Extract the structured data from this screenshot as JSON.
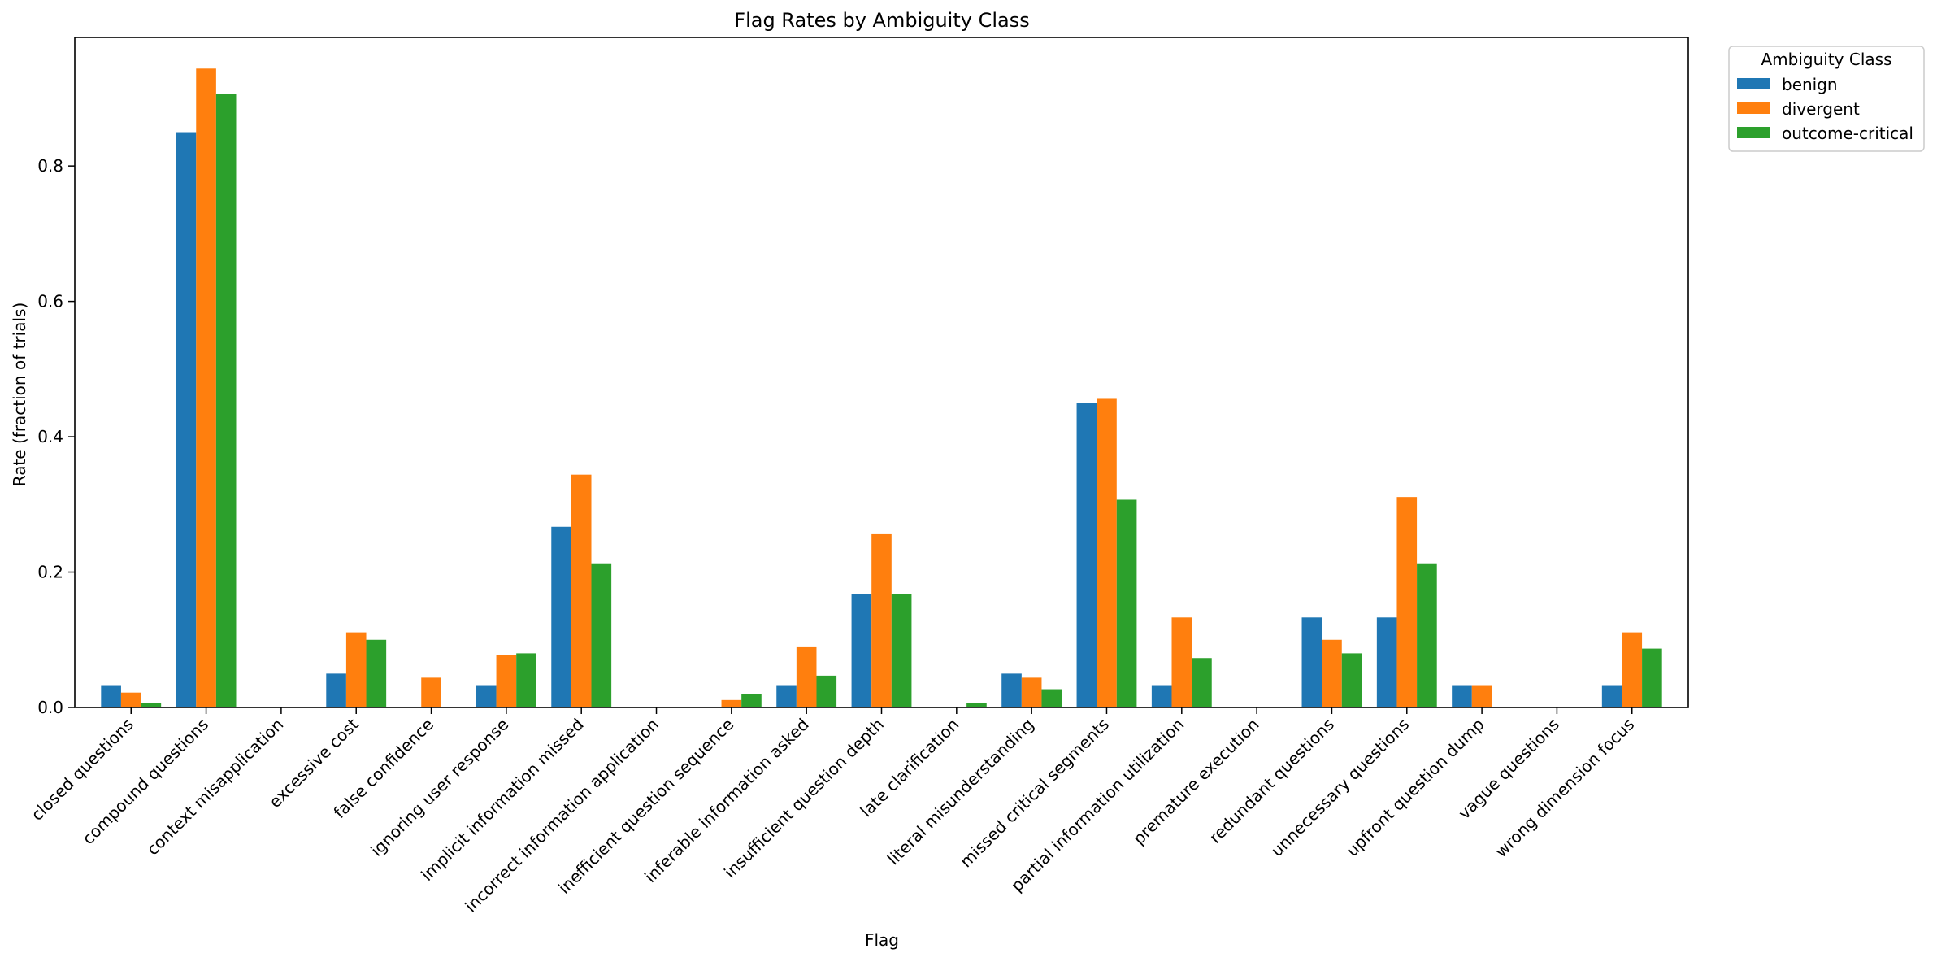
{
  "chart_data": {
    "type": "bar",
    "title": "Flag Rates by Ambiguity Class",
    "xlabel": "Flag",
    "ylabel": "Rate (fraction of trials)",
    "ylim": [
      0,
      0.99
    ],
    "yticks": [
      0.0,
      0.2,
      0.4,
      0.6,
      0.8
    ],
    "ytick_labels": [
      "0.0",
      "0.2",
      "0.4",
      "0.6",
      "0.8"
    ],
    "grid": false,
    "legend": {
      "title": "Ambiguity Class",
      "placement": "outside top-right"
    },
    "categories": [
      "closed questions",
      "compound questions",
      "context misapplication",
      "excessive cost",
      "false confidence",
      "ignoring user response",
      "implicit information missed",
      "incorrect information application",
      "inefficient question sequence",
      "inferable information asked",
      "insufficient question depth",
      "late clarification",
      "literal misunderstanding",
      "missed critical segments",
      "partial information utilization",
      "premature execution",
      "redundant questions",
      "unnecessary questions",
      "upfront question dump",
      "vague questions",
      "wrong dimension focus"
    ],
    "series": [
      {
        "name": "benign",
        "color": "#1f77b4",
        "values": [
          0.033,
          0.85,
          0.0,
          0.05,
          0.0,
          0.033,
          0.267,
          0.0,
          0.0,
          0.033,
          0.167,
          0.0,
          0.05,
          0.45,
          0.033,
          0.0,
          0.133,
          0.133,
          0.033,
          0.0,
          0.033
        ]
      },
      {
        "name": "divergent",
        "color": "#ff7f0e",
        "values": [
          0.022,
          0.944,
          0.0,
          0.111,
          0.044,
          0.078,
          0.344,
          0.0,
          0.011,
          0.089,
          0.256,
          0.0,
          0.044,
          0.456,
          0.133,
          0.0,
          0.1,
          0.311,
          0.033,
          0.0,
          0.111
        ]
      },
      {
        "name": "outcome-critical",
        "color": "#2ca02c",
        "values": [
          0.007,
          0.907,
          0.0,
          0.1,
          0.0,
          0.08,
          0.213,
          0.0,
          0.02,
          0.047,
          0.167,
          0.007,
          0.027,
          0.307,
          0.073,
          0.0,
          0.08,
          0.213,
          0.0,
          0.0,
          0.087
        ]
      }
    ]
  }
}
